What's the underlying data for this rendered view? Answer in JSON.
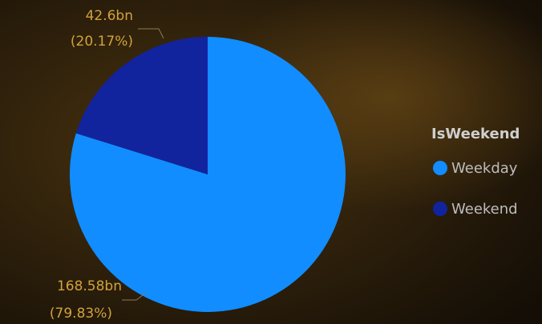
{
  "chart_data": {
    "type": "pie",
    "categories": [
      "Weekday",
      "Weekend"
    ],
    "values": [
      168.58,
      42.6
    ],
    "value_labels": [
      "168.58bn",
      "42.6bn"
    ],
    "percent_labels": [
      "(79.83%)",
      "(20.17%)"
    ],
    "colors": [
      "#118dff",
      "#12239e"
    ],
    "legend_title": "IsWeekend",
    "legend": "right"
  }
}
